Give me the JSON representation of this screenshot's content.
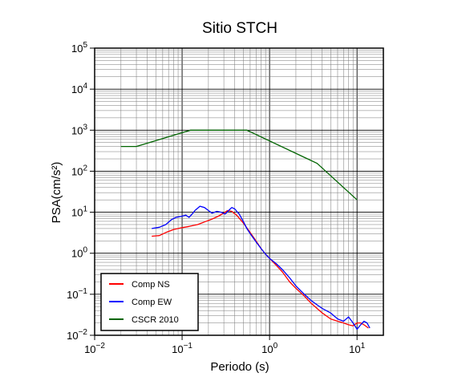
{
  "chart_data": {
    "type": "line",
    "title": "Sitio STCH",
    "xlabel": "Periodo (s)",
    "ylabel": "PSA(cm/s²)",
    "xscale": "log",
    "yscale": "log",
    "xlim": [
      0.01,
      20
    ],
    "ylim": [
      0.01,
      100000
    ],
    "grid": true,
    "legend_position": "bottom-left",
    "x_tick_labels": [
      {
        "base": "10",
        "exp": "−2",
        "value": 0.01
      },
      {
        "base": "10",
        "exp": "−1",
        "value": 0.1
      },
      {
        "base": "10",
        "exp": "0",
        "value": 1
      },
      {
        "base": "10",
        "exp": "1",
        "value": 10
      }
    ],
    "y_tick_labels": [
      {
        "base": "10",
        "exp": "−2",
        "value": 0.01
      },
      {
        "base": "10",
        "exp": "−1",
        "value": 0.1
      },
      {
        "base": "10",
        "exp": "0",
        "value": 1
      },
      {
        "base": "10",
        "exp": "1",
        "value": 10
      },
      {
        "base": "10",
        "exp": "2",
        "value": 100
      },
      {
        "base": "10",
        "exp": "3",
        "value": 1000
      },
      {
        "base": "10",
        "exp": "4",
        "value": 10000
      },
      {
        "base": "10",
        "exp": "5",
        "value": 100000
      }
    ],
    "series": [
      {
        "name": "Comp NS",
        "color": "#ff0000",
        "points": [
          [
            0.045,
            2.6
          ],
          [
            0.055,
            2.7
          ],
          [
            0.065,
            3.2
          ],
          [
            0.08,
            3.8
          ],
          [
            0.1,
            4.2
          ],
          [
            0.12,
            4.5
          ],
          [
            0.15,
            5.0
          ],
          [
            0.18,
            5.8
          ],
          [
            0.22,
            6.8
          ],
          [
            0.26,
            8.0
          ],
          [
            0.3,
            9.5
          ],
          [
            0.33,
            11.0
          ],
          [
            0.37,
            10.5
          ],
          [
            0.42,
            8.5
          ],
          [
            0.5,
            5.5
          ],
          [
            0.6,
            3.2
          ],
          [
            0.7,
            2.0
          ],
          [
            0.8,
            1.3
          ],
          [
            0.9,
            0.95
          ],
          [
            1.0,
            0.75
          ],
          [
            1.2,
            0.5
          ],
          [
            1.4,
            0.35
          ],
          [
            1.7,
            0.2
          ],
          [
            2.0,
            0.14
          ],
          [
            2.5,
            0.09
          ],
          [
            3.0,
            0.06
          ],
          [
            3.5,
            0.045
          ],
          [
            4.0,
            0.035
          ],
          [
            5.0,
            0.025
          ],
          [
            6.0,
            0.022
          ],
          [
            7.0,
            0.02
          ],
          [
            8.0,
            0.018
          ],
          [
            9.0,
            0.017
          ],
          [
            10.0,
            0.02
          ],
          [
            11.0,
            0.02
          ],
          [
            12.0,
            0.018
          ],
          [
            13.5,
            0.015
          ]
        ]
      },
      {
        "name": "Comp EW",
        "color": "#0000ff",
        "points": [
          [
            0.045,
            4.0
          ],
          [
            0.055,
            4.3
          ],
          [
            0.065,
            5.0
          ],
          [
            0.075,
            6.5
          ],
          [
            0.085,
            7.5
          ],
          [
            0.1,
            8.0
          ],
          [
            0.11,
            8.5
          ],
          [
            0.12,
            7.5
          ],
          [
            0.13,
            9.0
          ],
          [
            0.14,
            11.0
          ],
          [
            0.16,
            14.0
          ],
          [
            0.18,
            13.0
          ],
          [
            0.2,
            11.0
          ],
          [
            0.22,
            9.5
          ],
          [
            0.25,
            10.5
          ],
          [
            0.28,
            10.0
          ],
          [
            0.31,
            9.0
          ],
          [
            0.34,
            11.0
          ],
          [
            0.37,
            13.0
          ],
          [
            0.4,
            12.0
          ],
          [
            0.45,
            9.0
          ],
          [
            0.5,
            6.0
          ],
          [
            0.55,
            4.0
          ],
          [
            0.6,
            3.0
          ],
          [
            0.7,
            1.9
          ],
          [
            0.8,
            1.3
          ],
          [
            0.9,
            0.95
          ],
          [
            1.0,
            0.75
          ],
          [
            1.2,
            0.55
          ],
          [
            1.4,
            0.4
          ],
          [
            1.7,
            0.25
          ],
          [
            2.0,
            0.16
          ],
          [
            2.5,
            0.1
          ],
          [
            3.0,
            0.07
          ],
          [
            3.5,
            0.055
          ],
          [
            4.0,
            0.045
          ],
          [
            5.0,
            0.035
          ],
          [
            6.0,
            0.025
          ],
          [
            7.0,
            0.022
          ],
          [
            8.0,
            0.028
          ],
          [
            9.0,
            0.02
          ],
          [
            10.0,
            0.014
          ],
          [
            11.0,
            0.018
          ],
          [
            12.0,
            0.022
          ],
          [
            13.0,
            0.02
          ],
          [
            14.0,
            0.015
          ]
        ]
      },
      {
        "name": "CSCR 2010",
        "color": "#006400",
        "points": [
          [
            0.02,
            400
          ],
          [
            0.03,
            400
          ],
          [
            0.125,
            1000
          ],
          [
            0.55,
            1000
          ],
          [
            3.5,
            155
          ],
          [
            10.0,
            20
          ]
        ]
      }
    ]
  }
}
